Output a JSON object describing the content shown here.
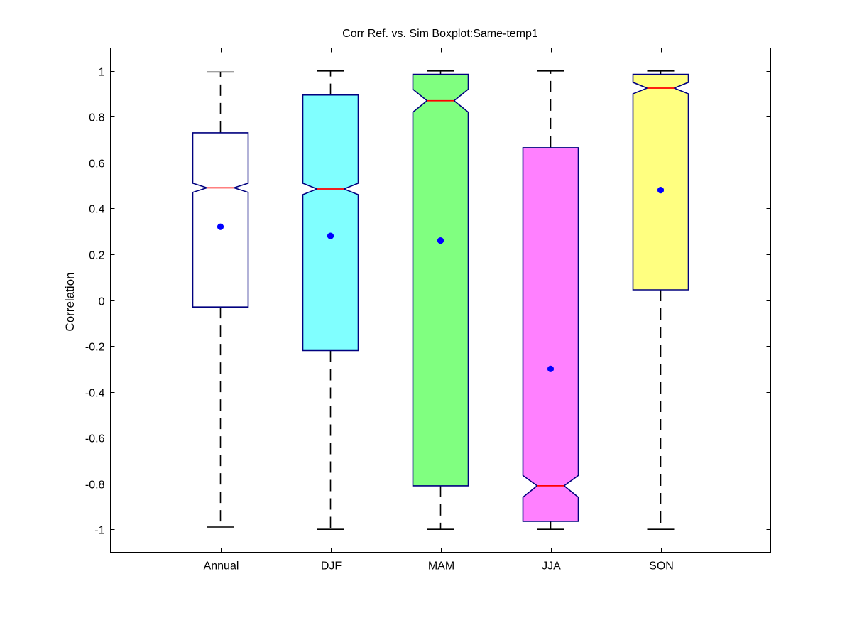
{
  "chart_data": {
    "type": "boxplot",
    "title": "Corr Ref. vs. Sim Boxplot:Same-temp1",
    "xlabel": "",
    "ylabel": "Correlation",
    "ylim": [
      -1.1,
      1.1
    ],
    "yticks": [
      -1,
      -0.8,
      -0.6,
      -0.4,
      -0.2,
      0,
      0.2,
      0.4,
      0.6,
      0.8,
      1
    ],
    "ytick_labels": [
      "-1",
      "-0.8",
      "-0.6",
      "-0.4",
      "-0.2",
      "0",
      "0.2",
      "0.4",
      "0.6",
      "0.8",
      "1"
    ],
    "grid": false,
    "notched": true,
    "categories": [
      "Annual",
      "DJF",
      "MAM",
      "JJA",
      "SON"
    ],
    "boxes": [
      {
        "category": "Annual",
        "whisker_low": -0.99,
        "q1": -0.03,
        "median": 0.49,
        "q3": 0.73,
        "whisker_high": 0.995,
        "notch_low": 0.47,
        "notch_high": 0.51,
        "mean": 0.32,
        "color": "#ffffff"
      },
      {
        "category": "DJF",
        "whisker_low": -1.0,
        "q1": -0.22,
        "median": 0.485,
        "q3": 0.895,
        "whisker_high": 1.0,
        "notch_low": 0.46,
        "notch_high": 0.51,
        "mean": 0.28,
        "color": "#80ffff"
      },
      {
        "category": "MAM",
        "whisker_low": -1.0,
        "q1": -0.81,
        "median": 0.87,
        "q3": 0.985,
        "whisker_high": 1.0,
        "notch_low": 0.82,
        "notch_high": 0.92,
        "mean": 0.26,
        "color": "#80ff80"
      },
      {
        "category": "JJA",
        "whisker_low": -1.0,
        "q1": -0.965,
        "median": -0.81,
        "q3": 0.665,
        "whisker_high": 1.0,
        "notch_low": -0.86,
        "notch_high": -0.765,
        "mean": -0.3,
        "color": "#ff80ff"
      },
      {
        "category": "SON",
        "whisker_low": -1.0,
        "q1": 0.045,
        "median": 0.925,
        "q3": 0.985,
        "whisker_high": 1.0,
        "notch_low": 0.9,
        "notch_high": 0.95,
        "mean": 0.48,
        "color": "#ffff80"
      }
    ],
    "colors": {
      "box_edge": "#00007f",
      "median": "#ff0000",
      "mean_marker": "#0000ff",
      "whisker": "#000000"
    }
  }
}
